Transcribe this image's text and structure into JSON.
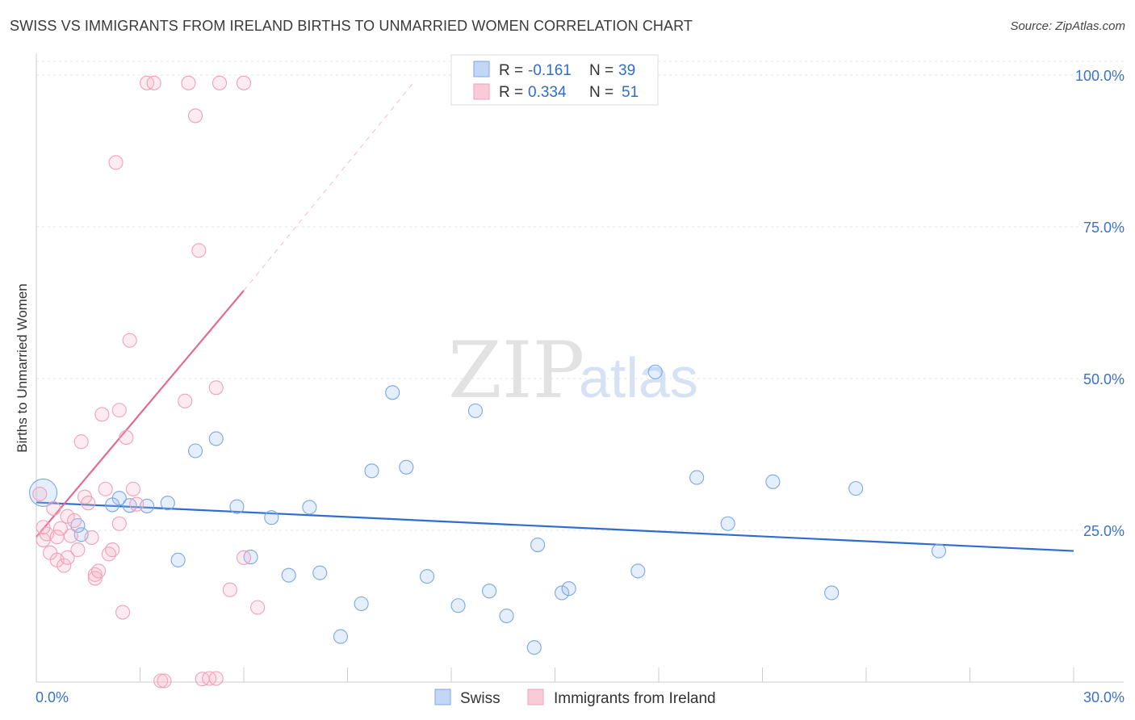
{
  "header": {
    "title": "SWISS VS IMMIGRANTS FROM IRELAND BIRTHS TO UNMARRIED WOMEN CORRELATION CHART",
    "source": "Source: ZipAtlas.com"
  },
  "watermark": {
    "zip": "ZIP",
    "atlas": "atlas"
  },
  "chart_data": {
    "type": "scatter",
    "title": "SWISS VS IMMIGRANTS FROM IRELAND BIRTHS TO UNMARRIED WOMEN CORRELATION CHART",
    "xlabel": "",
    "ylabel": "Births to Unmarried Women",
    "xlim": [
      0,
      30
    ],
    "ylim": [
      0,
      102
    ],
    "x_tick_labels": [
      "0.0%",
      "30.0%"
    ],
    "y_tick_labels": [
      "25.0%",
      "50.0%",
      "75.0%",
      "100.0%"
    ],
    "y_ticks": [
      25,
      50,
      75,
      100
    ],
    "grid": true,
    "legend_top": [
      {
        "name": "Swiss",
        "r_label": "R =",
        "r_value": "-0.161",
        "n_label": "N =",
        "n_value": "39",
        "color": "#7aa7e4"
      },
      {
        "name": "Immigrants from Ireland",
        "r_label": "R =",
        "r_value": "0.334",
        "n_label": "N =",
        "n_value": "51",
        "color": "#f0a0b8"
      }
    ],
    "series": [
      {
        "name": "Swiss",
        "color": "#7aa7e4",
        "line_color": "#2f6cd0",
        "trend": {
          "x": [
            0,
            30
          ],
          "y": [
            29.6,
            21.6
          ]
        },
        "points": [
          {
            "x": 0.2,
            "y": 31.2,
            "big": true
          },
          {
            "x": 1.3,
            "y": 24.3
          },
          {
            "x": 1.2,
            "y": 25.8
          },
          {
            "x": 2.4,
            "y": 30.3
          },
          {
            "x": 2.2,
            "y": 29.2
          },
          {
            "x": 2.7,
            "y": 29.1
          },
          {
            "x": 3.2,
            "y": 29.0
          },
          {
            "x": 3.8,
            "y": 29.5
          },
          {
            "x": 4.1,
            "y": 20.1
          },
          {
            "x": 4.6,
            "y": 38.1
          },
          {
            "x": 5.2,
            "y": 40.1
          },
          {
            "x": 5.8,
            "y": 28.9
          },
          {
            "x": 6.2,
            "y": 20.6
          },
          {
            "x": 6.8,
            "y": 27.1
          },
          {
            "x": 7.3,
            "y": 17.6
          },
          {
            "x": 7.9,
            "y": 28.8
          },
          {
            "x": 8.2,
            "y": 18.0
          },
          {
            "x": 8.8,
            "y": 7.5
          },
          {
            "x": 9.4,
            "y": 12.9
          },
          {
            "x": 9.7,
            "y": 34.8
          },
          {
            "x": 10.3,
            "y": 47.7
          },
          {
            "x": 10.7,
            "y": 35.4
          },
          {
            "x": 11.3,
            "y": 17.4
          },
          {
            "x": 12.2,
            "y": 12.6
          },
          {
            "x": 12.7,
            "y": 44.7
          },
          {
            "x": 13.1,
            "y": 15.0
          },
          {
            "x": 13.6,
            "y": 10.9
          },
          {
            "x": 14.4,
            "y": 5.7
          },
          {
            "x": 14.5,
            "y": 22.6
          },
          {
            "x": 15.2,
            "y": 14.7
          },
          {
            "x": 15.4,
            "y": 15.4
          },
          {
            "x": 17.4,
            "y": 18.3
          },
          {
            "x": 17.9,
            "y": 51.1
          },
          {
            "x": 19.1,
            "y": 33.7
          },
          {
            "x": 20.0,
            "y": 26.1
          },
          {
            "x": 21.3,
            "y": 33.0
          },
          {
            "x": 23.0,
            "y": 14.7
          },
          {
            "x": 23.7,
            "y": 31.9
          },
          {
            "x": 26.1,
            "y": 21.6
          }
        ]
      },
      {
        "name": "Immigrants from Ireland",
        "color": "#f0a0b8",
        "line_color": "#e36a93",
        "trend": {
          "x": [
            0,
            6.0
          ],
          "y": [
            23.9,
            64.5
          ]
        },
        "trend_dashed": {
          "x": [
            6.0,
            10.9
          ],
          "y": [
            64.5,
            98.7
          ]
        },
        "points": [
          {
            "x": 0.1,
            "y": 31.0
          },
          {
            "x": 0.2,
            "y": 25.5
          },
          {
            "x": 0.2,
            "y": 23.4
          },
          {
            "x": 0.3,
            "y": 24.4
          },
          {
            "x": 0.4,
            "y": 21.3
          },
          {
            "x": 0.5,
            "y": 28.6
          },
          {
            "x": 0.6,
            "y": 20.1
          },
          {
            "x": 0.6,
            "y": 23.9
          },
          {
            "x": 0.7,
            "y": 25.3
          },
          {
            "x": 0.8,
            "y": 19.2
          },
          {
            "x": 0.9,
            "y": 20.5
          },
          {
            "x": 0.9,
            "y": 27.3
          },
          {
            "x": 1.0,
            "y": 24.1
          },
          {
            "x": 1.1,
            "y": 26.6
          },
          {
            "x": 1.2,
            "y": 21.8
          },
          {
            "x": 1.3,
            "y": 39.6
          },
          {
            "x": 1.4,
            "y": 30.5
          },
          {
            "x": 1.5,
            "y": 29.5
          },
          {
            "x": 1.6,
            "y": 23.8
          },
          {
            "x": 1.7,
            "y": 17.7
          },
          {
            "x": 1.7,
            "y": 17.1
          },
          {
            "x": 1.8,
            "y": 18.3
          },
          {
            "x": 1.9,
            "y": 44.1
          },
          {
            "x": 2.0,
            "y": 31.8
          },
          {
            "x": 2.1,
            "y": 21.1
          },
          {
            "x": 2.2,
            "y": 21.8
          },
          {
            "x": 2.3,
            "y": 85.6
          },
          {
            "x": 2.4,
            "y": 44.8
          },
          {
            "x": 2.4,
            "y": 26.1
          },
          {
            "x": 2.5,
            "y": 11.5
          },
          {
            "x": 2.6,
            "y": 40.3
          },
          {
            "x": 2.7,
            "y": 56.3
          },
          {
            "x": 2.8,
            "y": 31.8
          },
          {
            "x": 2.9,
            "y": 29.3
          },
          {
            "x": 3.2,
            "y": 98.7
          },
          {
            "x": 3.4,
            "y": 98.7
          },
          {
            "x": 3.6,
            "y": 0.2
          },
          {
            "x": 3.7,
            "y": 0.2
          },
          {
            "x": 4.4,
            "y": 98.7
          },
          {
            "x": 4.6,
            "y": 93.3
          },
          {
            "x": 4.7,
            "y": 71.1
          },
          {
            "x": 4.3,
            "y": 46.3
          },
          {
            "x": 4.8,
            "y": 0.5
          },
          {
            "x": 5.0,
            "y": 0.6
          },
          {
            "x": 5.2,
            "y": 0.6
          },
          {
            "x": 5.2,
            "y": 48.5
          },
          {
            "x": 5.3,
            "y": 98.7
          },
          {
            "x": 5.6,
            "y": 15.2
          },
          {
            "x": 6.0,
            "y": 98.7
          },
          {
            "x": 6.0,
            "y": 20.5
          },
          {
            "x": 6.4,
            "y": 12.3
          }
        ]
      }
    ]
  }
}
